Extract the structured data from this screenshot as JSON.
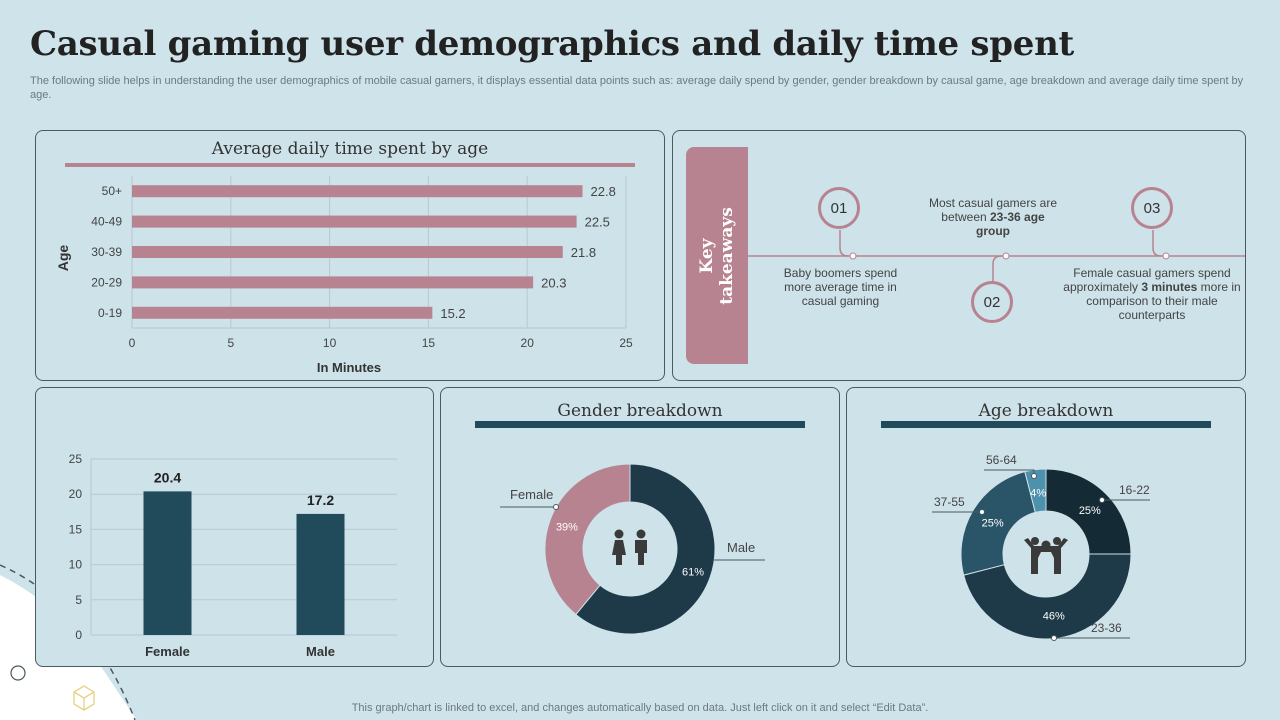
{
  "header": {
    "title": "Casual gaming user demographics and daily time spent",
    "subtitle": "The following slide helps in understanding the user demographics of mobile casual gamers, it displays essential data points such as: average daily spend by gender, gender breakdown by causal game, age breakdown and average daily time spent by age."
  },
  "footer": {
    "text": "This graph/chart is linked to excel,  and changes automatically based on data. Just left click on it and select “Edit Data”."
  },
  "takeaways": {
    "label_line1": "Key",
    "label_line2": "takeaways",
    "items": [
      {
        "num": "01",
        "text": "Baby boomers spend more average time in casual gaming"
      },
      {
        "num": "02",
        "text_pre": "Most casual gamers are between ",
        "text_bold": "23-36 age group",
        "text_post": ""
      },
      {
        "num": "03",
        "text_pre": "Female casual gamers spend approximately ",
        "text_bold": "3 minutes",
        "text_post": " more in comparison to their male counterparts"
      }
    ]
  },
  "colors": {
    "rose": "#b88390",
    "navy": "#214a5b",
    "darknavy": "#1e3a48",
    "deep": "#142b35",
    "mid": "#2a5568",
    "light": "#4d91ad",
    "grid": "#b9c8ce"
  },
  "chart_data": [
    {
      "type": "bar",
      "orientation": "horizontal",
      "title": "Average daily time spent by age",
      "categories": [
        "50+",
        "40-49",
        "30-39",
        "20-29",
        "0-19"
      ],
      "values": [
        22.8,
        22.5,
        21.8,
        20.3,
        15.2
      ],
      "xlabel": "In Minutes",
      "ylabel": "Age",
      "xlim": [
        0,
        25
      ],
      "xticks": [
        0,
        5,
        10,
        15,
        20,
        25
      ]
    },
    {
      "type": "bar",
      "title": "",
      "categories": [
        "Female",
        "Male"
      ],
      "values": [
        20.4,
        17.2
      ],
      "ylim": [
        0,
        25
      ],
      "yticks": [
        0,
        5,
        10,
        15,
        20,
        25
      ]
    },
    {
      "type": "pie",
      "title": "Gender breakdown",
      "labels": [
        "Male",
        "Female"
      ],
      "values": [
        61,
        39
      ],
      "value_labels": [
        "61%",
        "39%"
      ]
    },
    {
      "type": "pie",
      "title": "Age breakdown",
      "labels": [
        "16-22",
        "23-36",
        "37-55",
        "56-64"
      ],
      "values": [
        25,
        46,
        25,
        4
      ],
      "value_labels": [
        "25%",
        "46%",
        "25%",
        "4%"
      ]
    }
  ]
}
